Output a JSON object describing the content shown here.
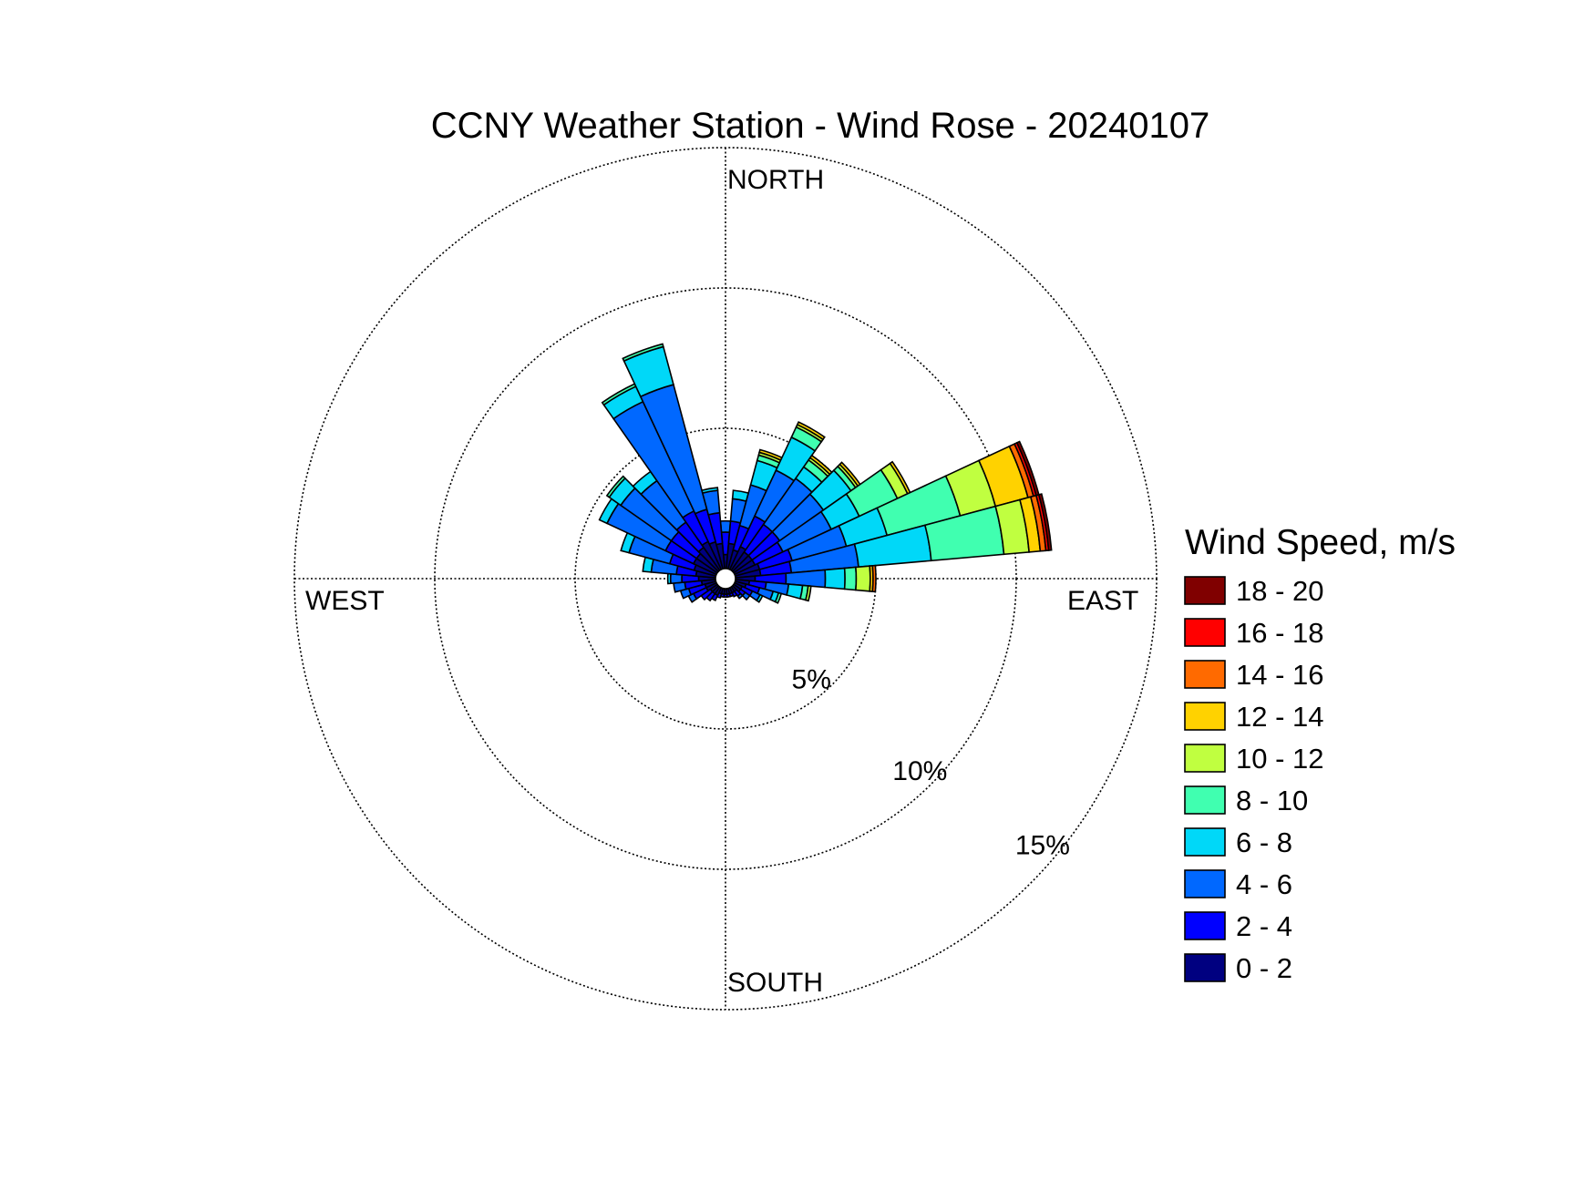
{
  "chart_data": {
    "type": "wind-rose",
    "title": "CCNY Weather Station - Wind Rose - 20240107",
    "direction_labels": {
      "north": "NORTH",
      "south": "SOUTH",
      "east": "EAST",
      "west": "WEST"
    },
    "radial_unit": "%",
    "radial_ticks": [
      5,
      10,
      15
    ],
    "radial_tick_labels": [
      "5%",
      "10%",
      "15%"
    ],
    "radial_max": 15,
    "grid": true,
    "legend": {
      "title": "Wind Speed, m/s",
      "position": "right",
      "entries": [
        {
          "label": "18 - 20",
          "color": "#800000"
        },
        {
          "label": "16 - 18",
          "color": "#ff0000"
        },
        {
          "label": "14 - 16",
          "color": "#ff6a00"
        },
        {
          "label": "12 - 14",
          "color": "#ffd200"
        },
        {
          "label": "10 - 12",
          "color": "#c0ff40"
        },
        {
          "label": "8 - 10",
          "color": "#40ffb0"
        },
        {
          "label": "6 - 8",
          "color": "#00d8f8"
        },
        {
          "label": "4 - 6",
          "color": "#0068ff"
        },
        {
          "label": "2 - 4",
          "color": "#0000ff"
        },
        {
          "label": "0 - 2",
          "color": "#000080"
        }
      ]
    },
    "speed_bins": [
      "0 - 2",
      "2 - 4",
      "4 - 6",
      "6 - 8",
      "8 - 10",
      "10 - 12",
      "12 - 14",
      "14 - 16",
      "16 - 18",
      "18 - 20"
    ],
    "bin_colors": [
      "#000080",
      "#0000ff",
      "#0068ff",
      "#00d8f8",
      "#40ffb0",
      "#c0ff40",
      "#ffd200",
      "#ff6a00",
      "#ff0000",
      "#800000"
    ],
    "direction_sector_width_deg": 10,
    "sectors": [
      {
        "dir_deg": 0,
        "cumulative": [
          0.5,
          1.3,
          1.7,
          1.7
        ]
      },
      {
        "dir_deg": 10,
        "cumulative": [
          0.9,
          1.7,
          2.5,
          2.8,
          2.8
        ]
      },
      {
        "dir_deg": 20,
        "cumulative": [
          0.7,
          1.6,
          3.1,
          4.0,
          4.2,
          4.3,
          4.4
        ]
      },
      {
        "dir_deg": 30,
        "cumulative": [
          0.9,
          2.1,
          3.9,
          5.2,
          5.6,
          5.7,
          5.8,
          5.8
        ]
      },
      {
        "dir_deg": 40,
        "cumulative": [
          0.8,
          2.0,
          4.0,
          4.5,
          4.8,
          4.9,
          5.0,
          5.0
        ]
      },
      {
        "dir_deg": 50,
        "cumulative": [
          0.8,
          2.0,
          3.9,
          5.1,
          5.3,
          5.4,
          5.5,
          5.5
        ]
      },
      {
        "dir_deg": 60,
        "cumulative": [
          0.8,
          1.9,
          3.8,
          4.9,
          6.4,
          6.8,
          6.9,
          6.9
        ]
      },
      {
        "dir_deg": 70,
        "cumulative": [
          0.9,
          2.1,
          4.1,
          5.6,
          8.3,
          9.6,
          10.8,
          11.0,
          11.1,
          11.2
        ]
      },
      {
        "dir_deg": 80,
        "cumulative": [
          0.9,
          2.0,
          4.4,
          7.0,
          9.6,
          10.5,
          10.9,
          11.1,
          11.2,
          11.3
        ]
      },
      {
        "dir_deg": 90,
        "cumulative": [
          0.7,
          1.8,
          3.2,
          3.9,
          4.3,
          4.8,
          4.9,
          5.0
        ]
      },
      {
        "dir_deg": 100,
        "cumulative": [
          0.5,
          1.1,
          1.9,
          2.4,
          2.6,
          2.7
        ]
      },
      {
        "dir_deg": 110,
        "cumulative": [
          0.4,
          0.9,
          1.4,
          1.6,
          1.7
        ]
      },
      {
        "dir_deg": 120,
        "cumulative": [
          0.3,
          0.7,
          1.0,
          1.1
        ]
      },
      {
        "dir_deg": 130,
        "cumulative": [
          0.3,
          0.5,
          0.7
        ]
      },
      {
        "dir_deg": 140,
        "cumulative": [
          0.2,
          0.4,
          0.5
        ]
      },
      {
        "dir_deg": 150,
        "cumulative": [
          0.2,
          0.35
        ]
      },
      {
        "dir_deg": 160,
        "cumulative": [
          0.2,
          0.3
        ]
      },
      {
        "dir_deg": 170,
        "cumulative": [
          0.2,
          0.3
        ]
      },
      {
        "dir_deg": 180,
        "cumulative": [
          0.2,
          0.3
        ]
      },
      {
        "dir_deg": 190,
        "cumulative": [
          0.2,
          0.3
        ]
      },
      {
        "dir_deg": 200,
        "cumulative": [
          0.2,
          0.35
        ]
      },
      {
        "dir_deg": 210,
        "cumulative": [
          0.3,
          0.5
        ]
      },
      {
        "dir_deg": 220,
        "cumulative": [
          0.3,
          0.6
        ]
      },
      {
        "dir_deg": 230,
        "cumulative": [
          0.3,
          0.7
        ]
      },
      {
        "dir_deg": 240,
        "cumulative": [
          0.4,
          0.9,
          1.1
        ]
      },
      {
        "dir_deg": 250,
        "cumulative": [
          0.4,
          1.0,
          1.3
        ]
      },
      {
        "dir_deg": 260,
        "cumulative": [
          0.5,
          1.1,
          1.5
        ]
      },
      {
        "dir_deg": 270,
        "cumulative": [
          0.6,
          1.2,
          1.6,
          1.7
        ]
      },
      {
        "dir_deg": 280,
        "cumulative": [
          0.7,
          1.4,
          2.3,
          2.6
        ]
      },
      {
        "dir_deg": 290,
        "cumulative": [
          0.8,
          1.7,
          3.2,
          3.5
        ]
      },
      {
        "dir_deg": 300,
        "cumulative": [
          0.9,
          2.0,
          4.3,
          4.6
        ]
      },
      {
        "dir_deg": 310,
        "cumulative": [
          0.9,
          2.0,
          4.2,
          4.7,
          4.8
        ]
      },
      {
        "dir_deg": 320,
        "cumulative": [
          1.0,
          2.1,
          3.9,
          4.3
        ]
      },
      {
        "dir_deg": 330,
        "cumulative": [
          1.1,
          2.3,
          6.6,
          7.2,
          7.3
        ]
      },
      {
        "dir_deg": 340,
        "cumulative": [
          1.0,
          2.2,
          6.8,
          8.2,
          8.3
        ]
      },
      {
        "dir_deg": 350,
        "cumulative": [
          0.9,
          2.0,
          2.8,
          2.9
        ]
      }
    ]
  }
}
